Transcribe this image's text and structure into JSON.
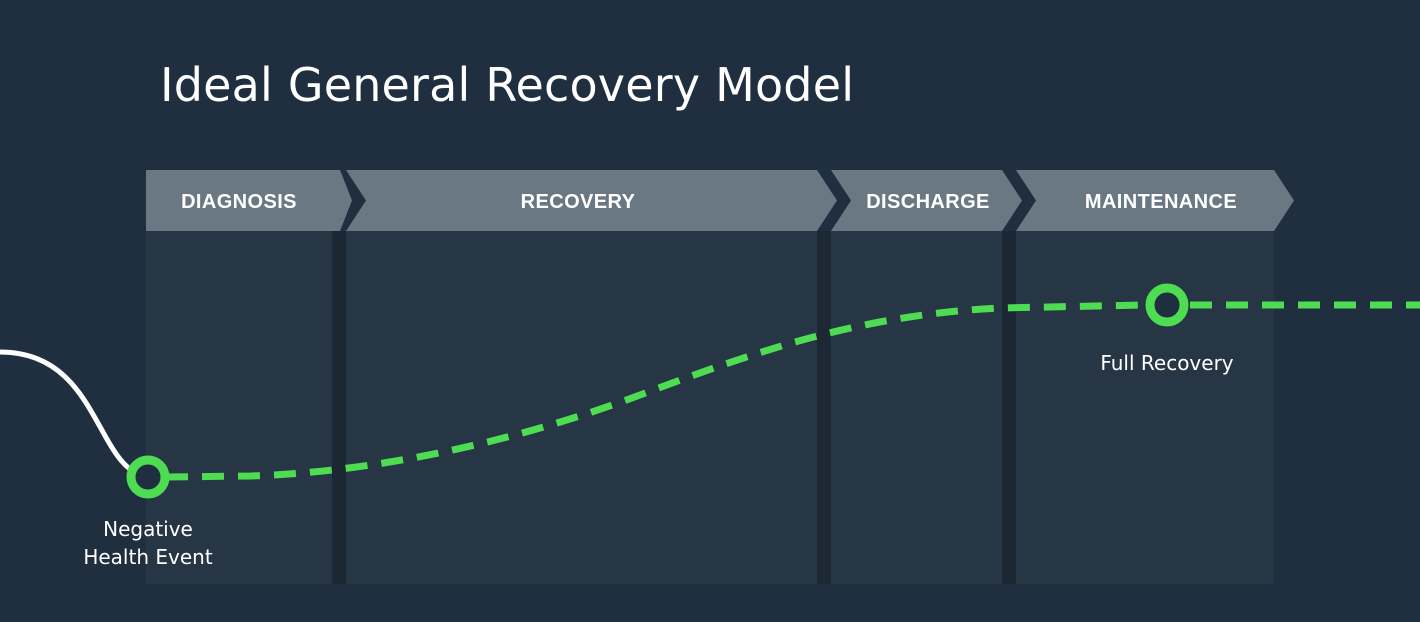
{
  "title": "Ideal General Recovery Model",
  "stages": [
    {
      "label": "DIAGNOSIS"
    },
    {
      "label": "RECOVERY"
    },
    {
      "label": "DISCHARGE"
    },
    {
      "label": "MAINTENANCE"
    }
  ],
  "milestones": {
    "start": {
      "line1": "Negative",
      "line2": "Health Event"
    },
    "end": {
      "label": "Full Recovery"
    }
  },
  "colors": {
    "background": "#1f2f3f",
    "stage_header": "#6a7883",
    "stage_column": "#273644",
    "stage_divider": "#1b2733",
    "recovery_path": "#4ddc52",
    "prior_path": "#ffffff",
    "marker_center": "#1f2f3f"
  }
}
